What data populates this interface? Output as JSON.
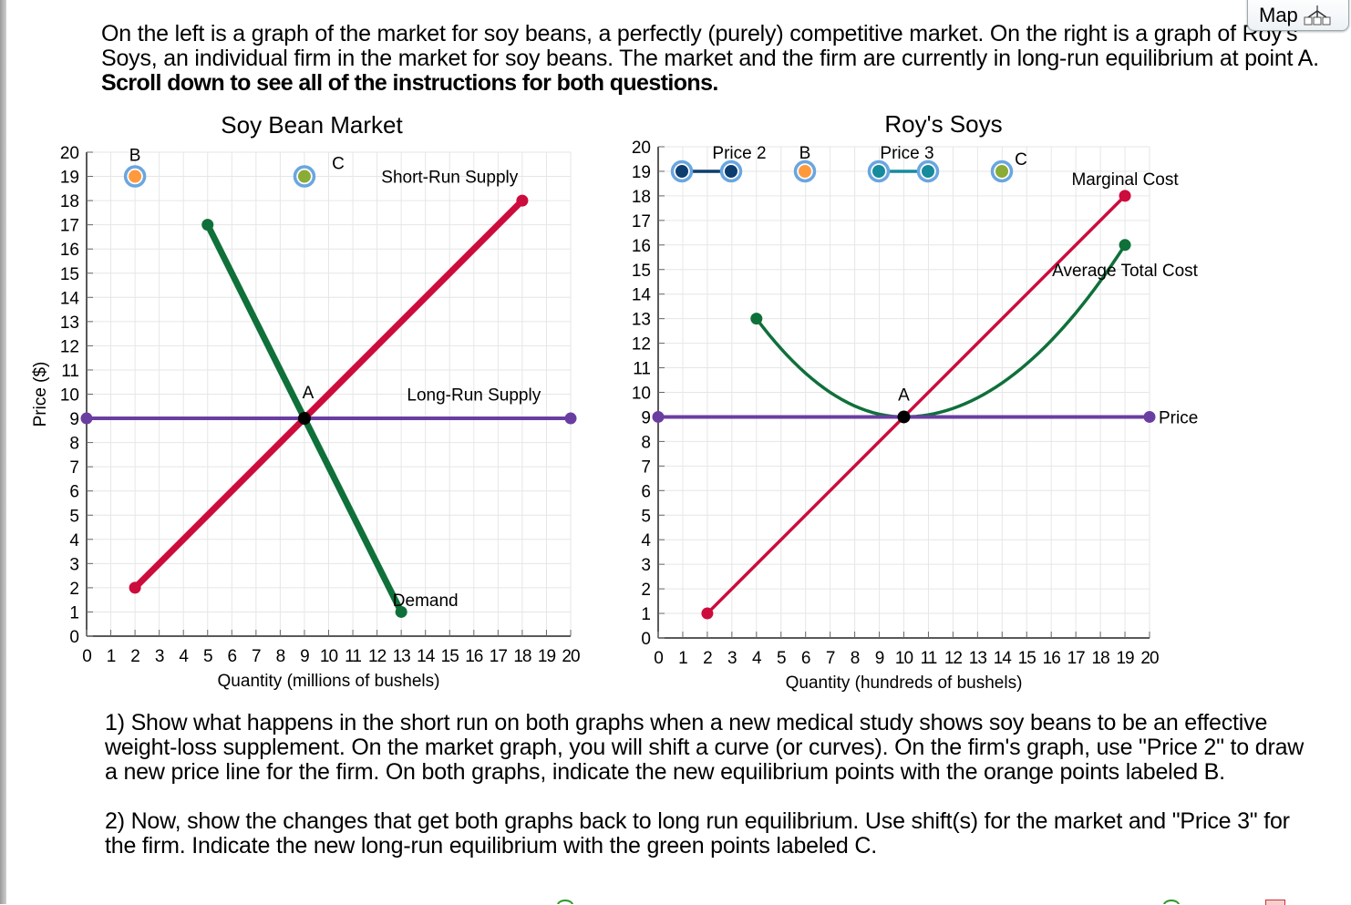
{
  "intro": {
    "text": "On the left is a graph of the market for soy beans, a perfectly (purely) competitive market. On the right is a graph of Roy's Soys, an individual firm in the market for soy beans. The market and the firm are currently in long-run equilibrium at point A. ",
    "bold": "Scroll down to see all of the instructions for both questions."
  },
  "map_button": {
    "label": "Map",
    "icon": "sitemap-icon"
  },
  "questions": [
    "1) Show what happens in the short run on both graphs when a new medical study shows soy beans to be an effective weight-loss supplement. On the market graph, you will shift a curve (or curves). On the firm's graph, use \"Price 2\" to draw a new price line for the firm. On both graphs, indicate the new equilibrium points with the orange points labeled B.",
    "2) Now, show the changes that get both graphs back to long run equilibrium. Use shift(s) for the market and \"Price 3\" for the firm. Indicate the new long-run equilibrium with the green points labeled C."
  ],
  "colors": {
    "supply_red": "#cc0c3c",
    "demand_green": "#0f703a",
    "price_purple": "#6a3ea1",
    "point_black": "#000000",
    "handle_ring": "#6aa6e0",
    "orange": "#ff9a3c",
    "green_point": "#8aab35",
    "price2_navy": "#0d3d6e",
    "price3_teal": "#168b9c",
    "grid": "#e6e6e6"
  },
  "chart_data": [
    {
      "type": "line",
      "title": "Soy Bean Market",
      "xlabel": "Quantity (millions of bushels)",
      "ylabel": "Price ($)",
      "xlim": [
        0,
        20
      ],
      "ylim": [
        0,
        20
      ],
      "x_ticks": [
        0,
        1,
        2,
        3,
        4,
        5,
        6,
        7,
        8,
        9,
        10,
        11,
        12,
        13,
        14,
        15,
        16,
        17,
        18,
        19,
        20
      ],
      "y_ticks": [
        0,
        1,
        2,
        3,
        4,
        5,
        6,
        7,
        8,
        9,
        10,
        11,
        12,
        13,
        14,
        15,
        16,
        17,
        18,
        19,
        20
      ],
      "grid": true,
      "series": [
        {
          "name": "Short-Run Supply",
          "points": [
            [
              2,
              2
            ],
            [
              18,
              18
            ]
          ],
          "color": "#cc0c3c"
        },
        {
          "name": "Demand",
          "points": [
            [
              5,
              17
            ],
            [
              13,
              1
            ]
          ],
          "color": "#0f703a"
        },
        {
          "name": "Long-Run Supply",
          "points": [
            [
              0,
              9
            ],
            [
              20,
              9
            ]
          ],
          "color": "#6a3ea1"
        }
      ],
      "points": [
        {
          "label": "A",
          "x": 9,
          "y": 9,
          "color": "#000000"
        },
        {
          "label": "B",
          "x": 2,
          "y": 19,
          "color": "#ff9a3c",
          "draggable": true
        },
        {
          "label": "C",
          "x": 9,
          "y": 19,
          "color": "#8aab35",
          "draggable": true
        }
      ],
      "labels": [
        {
          "text": "Short-Run Supply",
          "x": 15,
          "y": 19
        },
        {
          "text": "Long-Run Supply",
          "x": 16,
          "y": 10
        },
        {
          "text": "Demand",
          "x": 14,
          "y": 1.5
        }
      ]
    },
    {
      "type": "line",
      "title": "Roy's Soys",
      "xlabel": "Quantity (hundreds of bushels)",
      "ylabel": "",
      "xlim": [
        0,
        20
      ],
      "ylim": [
        0,
        20
      ],
      "x_ticks": [
        0,
        1,
        2,
        3,
        4,
        5,
        6,
        7,
        8,
        9,
        10,
        11,
        12,
        13,
        14,
        15,
        16,
        17,
        18,
        19,
        20
      ],
      "y_ticks": [
        0,
        1,
        2,
        3,
        4,
        5,
        6,
        7,
        8,
        9,
        10,
        11,
        12,
        13,
        14,
        15,
        16,
        17,
        18,
        19,
        20
      ],
      "grid": true,
      "series": [
        {
          "name": "Marginal Cost",
          "points": [
            [
              2,
              1
            ],
            [
              19,
              18
            ]
          ],
          "color": "#cc0c3c"
        },
        {
          "name": "Average Total Cost",
          "points": [
            [
              4,
              13
            ],
            [
              7,
              9.8
            ],
            [
              10,
              9
            ],
            [
              13,
              10.2
            ],
            [
              16,
              12.4
            ],
            [
              19,
              16
            ]
          ],
          "color": "#0f703a",
          "curve": true
        },
        {
          "name": "Price",
          "points": [
            [
              0,
              9
            ],
            [
              20,
              9
            ]
          ],
          "color": "#6a3ea1"
        }
      ],
      "tools": [
        {
          "label": "Price 2",
          "points": [
            [
              0.5,
              19
            ],
            [
              1.5,
              19
            ]
          ],
          "color": "#0d3d6e"
        },
        {
          "label": "B",
          "points": [
            [
              3,
              19
            ]
          ],
          "color": "#ff9a3c"
        },
        {
          "label": "Price 3",
          "points": [
            [
              4.5,
              19
            ],
            [
              5.5,
              19
            ]
          ],
          "color": "#168b9c"
        },
        {
          "label": "C",
          "points": [
            [
              7,
              19
            ]
          ],
          "color": "#8aab35"
        }
      ],
      "points": [
        {
          "label": "A",
          "x": 10,
          "y": 9,
          "color": "#000000"
        }
      ],
      "labels": [
        {
          "text": "Marginal Cost",
          "x": 19,
          "y": 18.7
        },
        {
          "text": "Average Total Cost",
          "x": 19,
          "y": 15
        },
        {
          "text": "Price",
          "x": 20,
          "y": 9
        }
      ]
    }
  ]
}
